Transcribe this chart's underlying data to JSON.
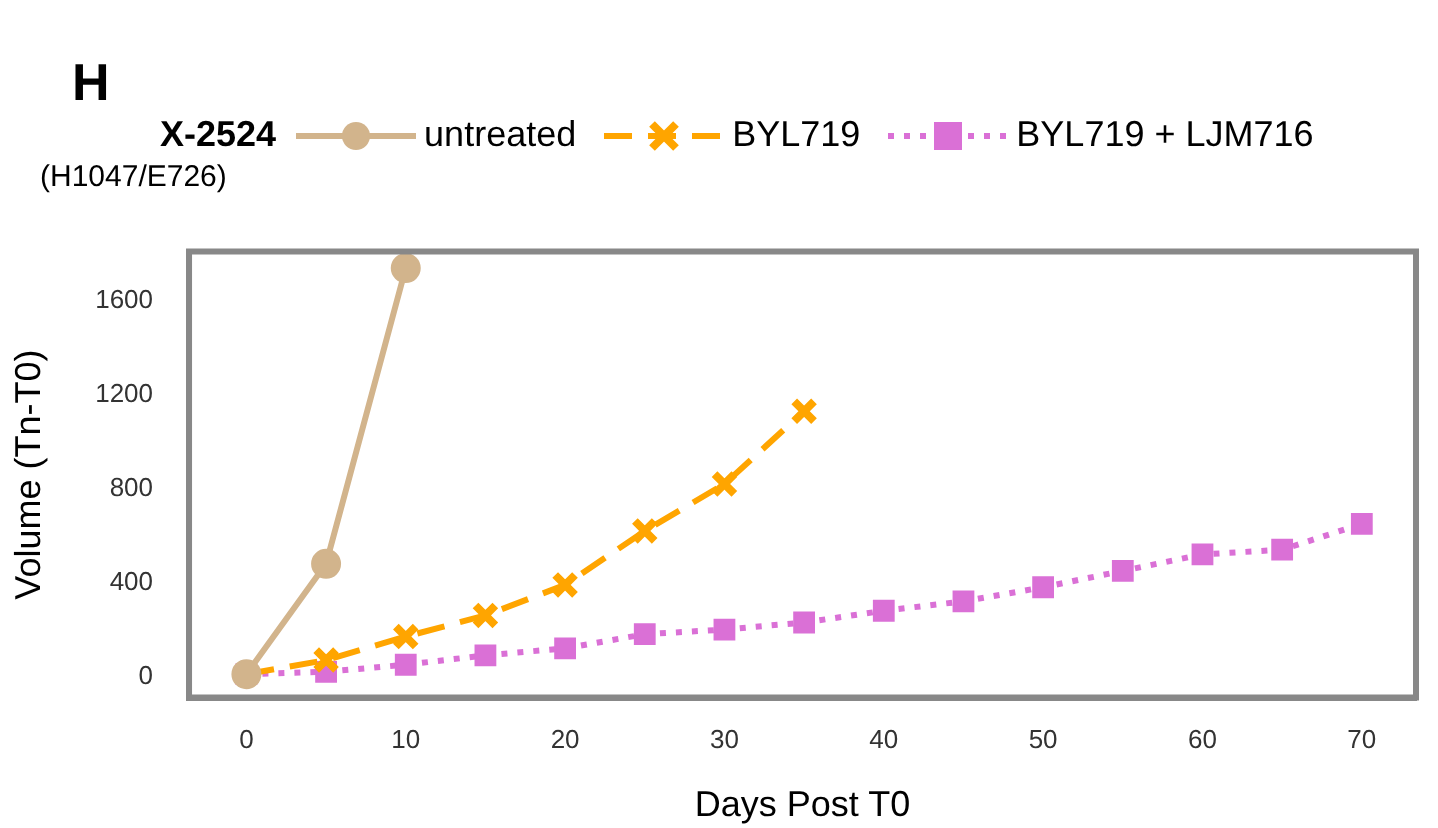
{
  "chart_data": {
    "type": "line",
    "xlabel": "Days Post T0",
    "ylabel": "Volume (Tn-T0)",
    "legend_title": "X-2524",
    "annotations": [
      "H",
      "(H1047/E726)"
    ],
    "xlim": [
      -3.6,
      73.4
    ],
    "xticks": [
      0,
      10,
      20,
      30,
      40,
      50,
      60,
      70
    ],
    "ylim": [
      -90,
      1810
    ],
    "yticks": [
      0,
      400,
      800,
      1200,
      1600
    ],
    "grid": false,
    "legend": "top",
    "series": [
      {
        "name": "untreated",
        "color": "#d2b48c",
        "marker": "circle",
        "line_style": "solid",
        "x": [
          0,
          5,
          10
        ],
        "values": [
          10,
          480,
          1740
        ]
      },
      {
        "name": "BYL719",
        "color": "#ffa500",
        "marker": "cross",
        "line_style": "dashed",
        "x": [
          0,
          5,
          10,
          15,
          20,
          25,
          30,
          35
        ],
        "values": [
          10,
          70,
          170,
          260,
          390,
          620,
          820,
          1130
        ]
      },
      {
        "name": "BYL719 + LJM716",
        "color": "#da70d6",
        "marker": "square",
        "line_style": "dotted",
        "x": [
          0,
          5,
          10,
          15,
          20,
          25,
          30,
          35,
          40,
          45,
          50,
          55,
          60,
          65,
          70
        ],
        "values": [
          10,
          20,
          50,
          90,
          120,
          180,
          200,
          230,
          280,
          320,
          380,
          450,
          520,
          540,
          650
        ]
      }
    ]
  }
}
